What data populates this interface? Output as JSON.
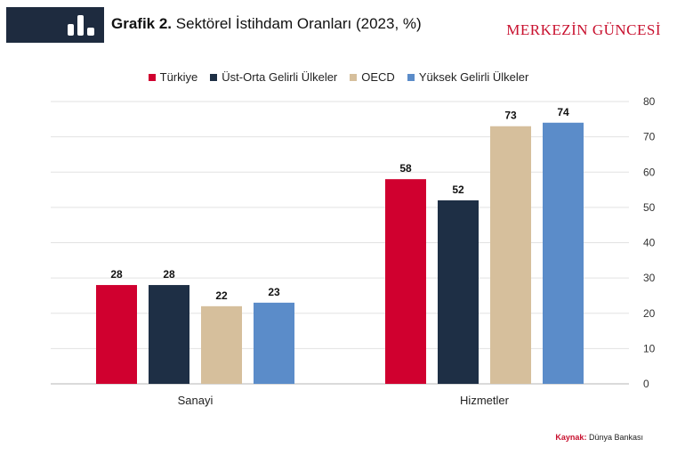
{
  "header": {
    "title_bold": "Grafik 2.",
    "title_rest": "Sektörel İstihdam Oranları (2023, %)",
    "brand": "MERKEZİN GÜNCESİ"
  },
  "source": {
    "label": "Kaynak:",
    "text": "Dünya Bankası"
  },
  "chart_data": {
    "type": "bar",
    "title": "Sektörel İstihdam Oranları (2023, %)",
    "categories": [
      "Sanayi",
      "Hizmetler"
    ],
    "series": [
      {
        "name": "Türkiye",
        "color": "#d0002f",
        "values": [
          28,
          58
        ]
      },
      {
        "name": "Üst-Orta Gelirli Ülkeler",
        "color": "#1e2f45",
        "values": [
          28,
          52
        ]
      },
      {
        "name": "OECD",
        "color": "#d6bf9c",
        "values": [
          22,
          73
        ]
      },
      {
        "name": "Yüksek Gelirli Ülkeler",
        "color": "#5b8cc9",
        "values": [
          23,
          74
        ]
      }
    ],
    "yticks": [
      0,
      10,
      20,
      30,
      40,
      50,
      60,
      70,
      80
    ],
    "ylim": [
      0,
      80
    ],
    "yaxis_position": "right",
    "grid": true,
    "legend_position": "top-center",
    "xlabel": "",
    "ylabel": ""
  }
}
